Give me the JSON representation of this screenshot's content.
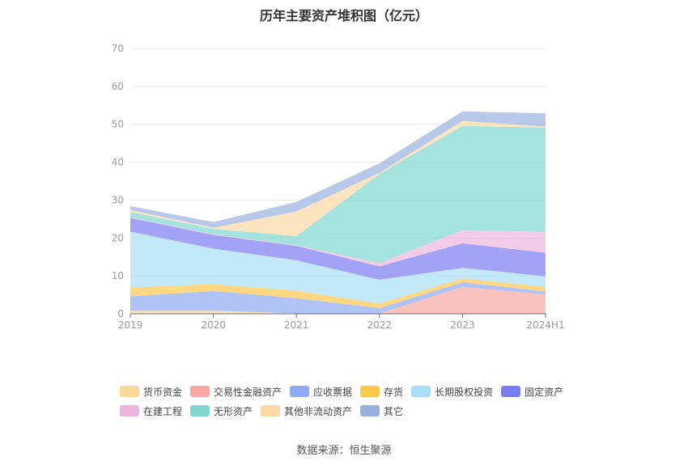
{
  "chart_data": {
    "type": "area",
    "title": "历年主要资产堆积图（亿元）",
    "source": "数据来源：恒生聚源",
    "x": [
      "2019",
      "2020",
      "2021",
      "2022",
      "2023",
      "2024H1"
    ],
    "ylim": [
      0,
      70
    ],
    "yticks": [
      0,
      10,
      20,
      30,
      40,
      50,
      60,
      70
    ],
    "stacked": true,
    "grid": true,
    "legend_position": "bottom",
    "series": [
      {
        "name": "货币资金",
        "color": "#f9d99a",
        "values": [
          0.8,
          0.8,
          0.1,
          0.1,
          0.1,
          0.1
        ]
      },
      {
        "name": "交易性金融资产",
        "color": "#f8a8a0",
        "values": [
          0.0,
          0.0,
          0.0,
          0.0,
          7.0,
          5.0
        ]
      },
      {
        "name": "应收票据",
        "color": "#8fa9f2",
        "values": [
          3.8,
          5.2,
          4.0,
          1.4,
          1.2,
          0.8
        ]
      },
      {
        "name": "存货",
        "color": "#fcc84c",
        "values": [
          2.3,
          1.8,
          2.0,
          1.2,
          1.0,
          1.2
        ]
      },
      {
        "name": "长期股权投资",
        "color": "#a9def8",
        "values": [
          14.8,
          9.4,
          8.0,
          6.3,
          2.8,
          2.8
        ]
      },
      {
        "name": "固定资产",
        "color": "#7b7cf2",
        "values": [
          3.6,
          3.6,
          3.8,
          3.5,
          6.5,
          6.2
        ]
      },
      {
        "name": "在建工程",
        "color": "#ecb6dc",
        "values": [
          0.2,
          0.2,
          0.2,
          0.9,
          3.5,
          5.5
        ]
      },
      {
        "name": "无形资产",
        "color": "#7fd7d0",
        "values": [
          1.4,
          1.4,
          2.4,
          23.5,
          27.5,
          27.5
        ]
      },
      {
        "name": "其他非流动资产",
        "color": "#fcd9a6",
        "values": [
          0.5,
          0.3,
          6.5,
          0.3,
          1.3,
          0.3
        ]
      },
      {
        "name": "其它",
        "color": "#98b0de",
        "values": [
          1.0,
          1.5,
          2.5,
          2.5,
          2.5,
          3.5
        ]
      }
    ]
  }
}
